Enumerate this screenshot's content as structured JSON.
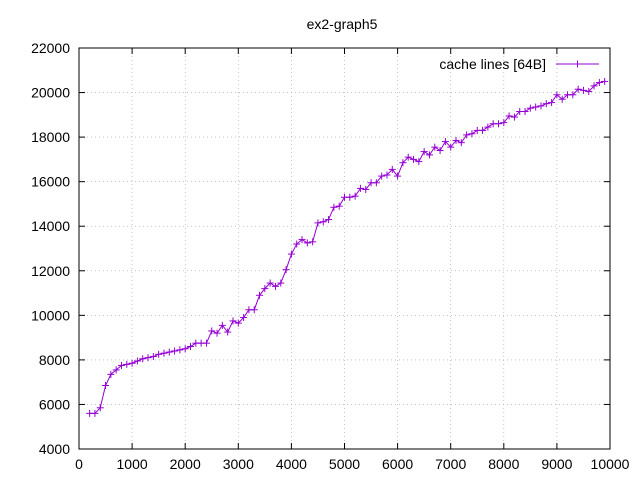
{
  "chart_data": {
    "type": "line",
    "title": "ex2-graph5",
    "xlabel": "",
    "ylabel": "",
    "xlim": [
      0,
      10000
    ],
    "ylim": [
      4000,
      22000
    ],
    "xticks": [
      0,
      1000,
      2000,
      3000,
      4000,
      5000,
      6000,
      7000,
      8000,
      9000,
      10000
    ],
    "yticks": [
      4000,
      6000,
      8000,
      10000,
      12000,
      14000,
      16000,
      18000,
      20000,
      22000
    ],
    "grid": true,
    "legend_position": "top-right",
    "series": [
      {
        "name": "cache lines [64B]",
        "color": "#9400d3",
        "marker": "plus",
        "x": [
          200,
          300,
          400,
          500,
          600,
          700,
          800,
          900,
          1000,
          1100,
          1200,
          1300,
          1400,
          1500,
          1600,
          1700,
          1800,
          1900,
          2000,
          2100,
          2200,
          2300,
          2400,
          2500,
          2600,
          2700,
          2800,
          2900,
          3000,
          3100,
          3200,
          3300,
          3400,
          3500,
          3600,
          3700,
          3800,
          3900,
          4000,
          4100,
          4200,
          4300,
          4400,
          4500,
          4600,
          4700,
          4800,
          4900,
          5000,
          5100,
          5200,
          5300,
          5400,
          5500,
          5600,
          5700,
          5800,
          5900,
          6000,
          6100,
          6200,
          6300,
          6400,
          6500,
          6600,
          6700,
          6800,
          6900,
          7000,
          7100,
          7200,
          7300,
          7400,
          7500,
          7600,
          7700,
          7800,
          7900,
          8000,
          8100,
          8200,
          8300,
          8400,
          8500,
          8600,
          8700,
          8800,
          8900,
          9000,
          9100,
          9200,
          9300,
          9400,
          9500,
          9600,
          9700,
          9800,
          9900
        ],
        "y": [
          5600,
          5600,
          5850,
          6850,
          7350,
          7550,
          7750,
          7800,
          7850,
          7950,
          8050,
          8100,
          8150,
          8250,
          8300,
          8350,
          8400,
          8450,
          8500,
          8600,
          8750,
          8750,
          8750,
          9300,
          9200,
          9550,
          9250,
          9750,
          9650,
          9900,
          10250,
          10250,
          10900,
          11200,
          11450,
          11300,
          11450,
          12050,
          12750,
          13200,
          13400,
          13250,
          13300,
          14150,
          14200,
          14300,
          14850,
          14900,
          15300,
          15300,
          15350,
          15700,
          15650,
          15950,
          15950,
          16250,
          16300,
          16550,
          16250,
          16850,
          17100,
          17000,
          16900,
          17350,
          17200,
          17550,
          17400,
          17800,
          17550,
          17850,
          17750,
          18100,
          18150,
          18300,
          18300,
          18450,
          18600,
          18600,
          18650,
          18950,
          18900,
          19150,
          19150,
          19300,
          19350,
          19400,
          19500,
          19550,
          19900,
          19700,
          19900,
          19900,
          20150,
          20100,
          20050,
          20300,
          20450,
          20500
        ]
      }
    ]
  }
}
